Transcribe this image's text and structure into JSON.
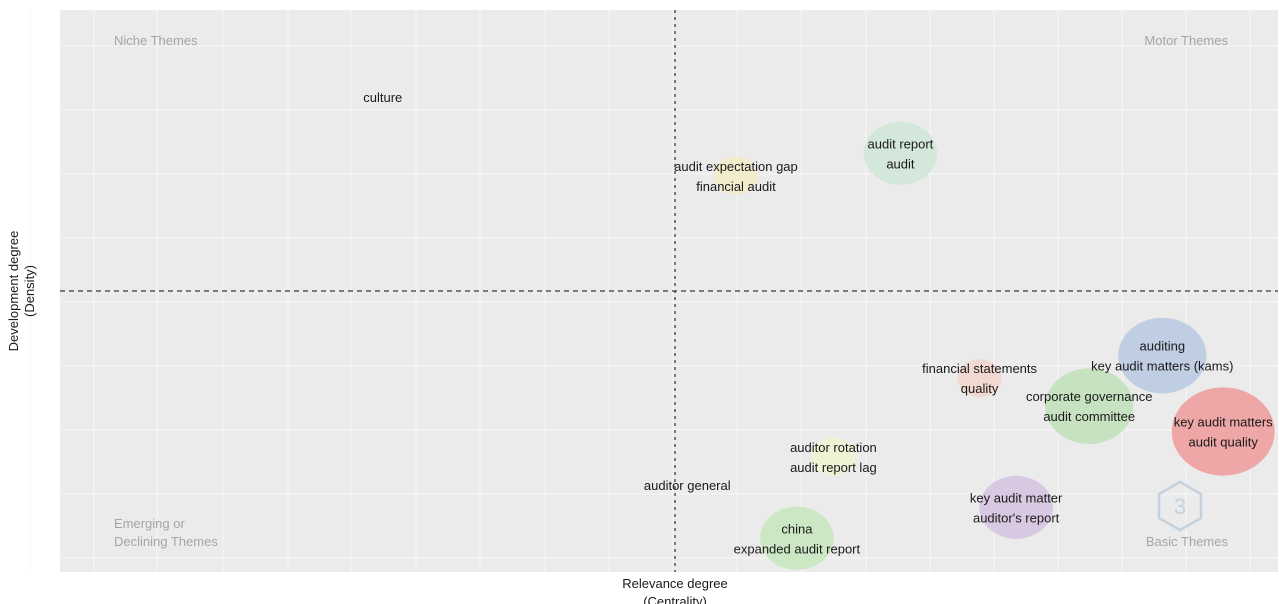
{
  "chart_data": {
    "type": "scatter",
    "title": "",
    "xlabel": "Relevance degree\n(Centrality)",
    "ylabel": "Development degree\n(Density)",
    "xlim": [
      0,
      1
    ],
    "ylim": [
      0,
      1
    ],
    "x_center": 0.475,
    "y_center": 0.5,
    "grid": true,
    "quadrants": {
      "top_left": "Niche Themes",
      "top_right": "Motor Themes",
      "bottom_left": "Emerging or\nDeclining Themes",
      "bottom_right": "Basic Themes"
    },
    "points": [
      {
        "labels": [
          "culture"
        ],
        "x": 0.265,
        "y": 0.845,
        "size": 0,
        "color": "#e8e8e8"
      },
      {
        "labels": [
          "audit report",
          "audit"
        ],
        "x": 0.69,
        "y": 0.745,
        "size": 3,
        "color": "#cfe8d8"
      },
      {
        "labels": [
          "audit expectation gap",
          "financial audit"
        ],
        "x": 0.555,
        "y": 0.705,
        "size": 1,
        "color": "#f3ecc8"
      },
      {
        "labels": [
          "auditing",
          "key audit matters (kams)"
        ],
        "x": 0.905,
        "y": 0.385,
        "size": 4,
        "color": "#b7c9e2"
      },
      {
        "labels": [
          "financial statements",
          "quality"
        ],
        "x": 0.755,
        "y": 0.345,
        "size": 1,
        "color": "#f2d6cc"
      },
      {
        "labels": [
          "corporate governance",
          "audit committee"
        ],
        "x": 0.845,
        "y": 0.295,
        "size": 4,
        "color": "#bfe0b8"
      },
      {
        "labels": [
          "key audit matters",
          "audit quality"
        ],
        "x": 0.955,
        "y": 0.25,
        "size": 5,
        "color": "#ef9a9a"
      },
      {
        "labels": [
          "auditor rotation",
          "audit report lag"
        ],
        "x": 0.635,
        "y": 0.205,
        "size": 1,
        "color": "#f0f3d0"
      },
      {
        "labels": [
          "auditor general"
        ],
        "x": 0.515,
        "y": 0.155,
        "size": 0,
        "color": "#f6d8d8"
      },
      {
        "labels": [
          "key audit matter",
          "auditor's report"
        ],
        "x": 0.785,
        "y": 0.115,
        "size": 3,
        "color": "#d6c2e0"
      },
      {
        "labels": [
          "china",
          "expanded audit report"
        ],
        "x": 0.605,
        "y": 0.06,
        "size": 3,
        "color": "#c6e6bd"
      }
    ]
  }
}
